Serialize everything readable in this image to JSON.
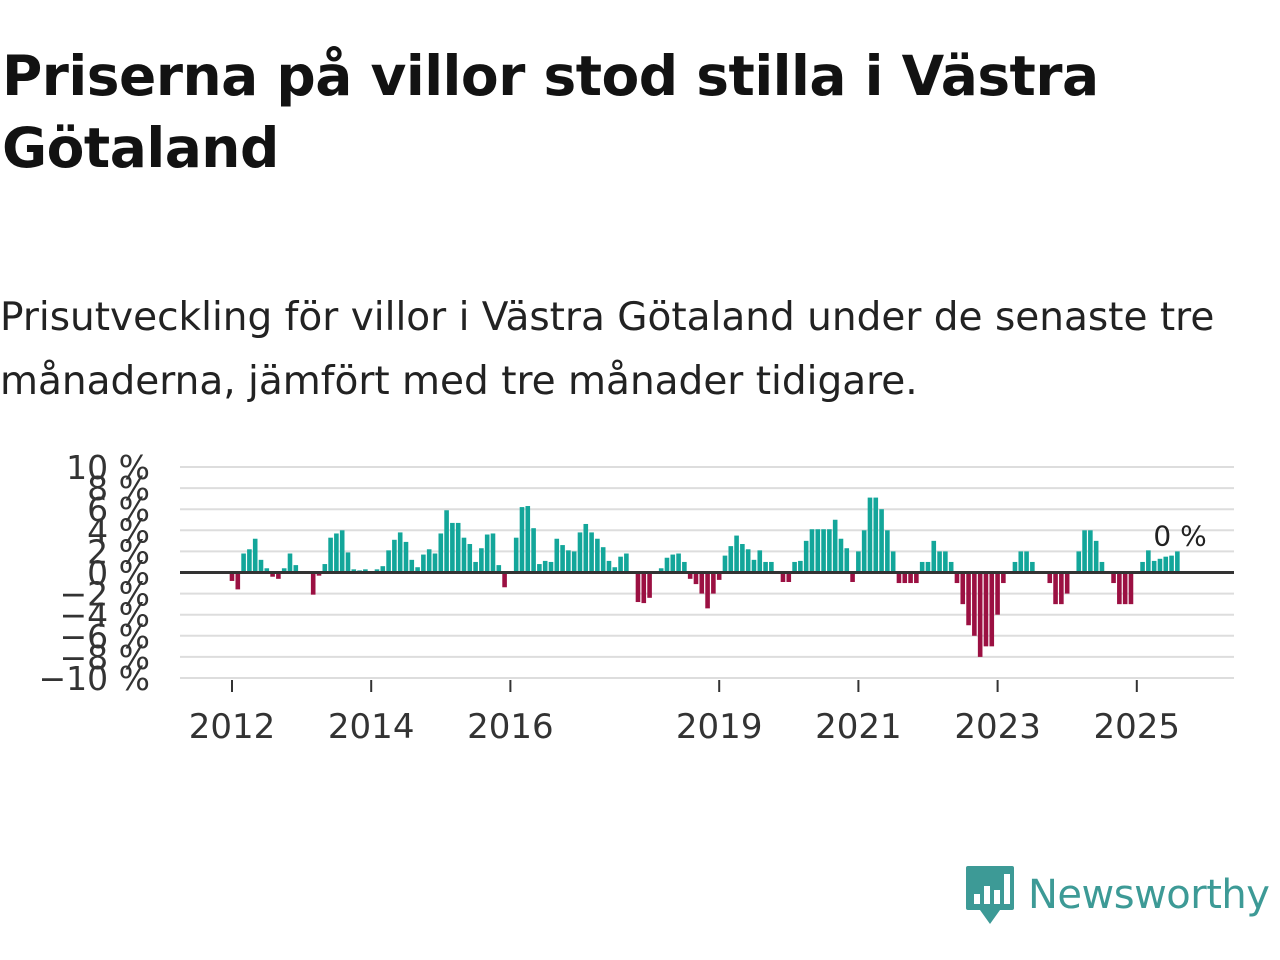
{
  "title": "Priserna på villor stod stilla i Västra Götaland",
  "subtitle": "Prisutveckling för villor i Västra Götaland under de senaste tre månaderna, jämfört med tre månader tidigare.",
  "logo": {
    "text": "Newsworthy",
    "icon": "newsworthy-logo-icon"
  },
  "colors": {
    "positive": "#13a69a",
    "negative": "#9b1042",
    "zero_line": "#333333",
    "grid": "#dddddd",
    "logo": "#3d9a96"
  },
  "chart_data": {
    "type": "bar",
    "title": "",
    "xlabel": "",
    "ylabel": "",
    "ylim": [
      -10,
      10
    ],
    "y_ticks": [
      -10,
      -8,
      -6,
      -4,
      -2,
      0,
      2,
      4,
      6,
      8,
      10
    ],
    "y_tick_labels": [
      "−10 %",
      "−8 %",
      "−6 %",
      "−4 %",
      "−2 %",
      "0 %",
      "2 %",
      "4 %",
      "6 %",
      "8 %",
      "10 %"
    ],
    "x_start": 2011.0,
    "x_end": 2026.25,
    "x_step": 0.08333,
    "x_ticks": [
      2012,
      2014,
      2016,
      2019,
      2021,
      2023,
      2025
    ],
    "x_tick_labels": [
      "2012",
      "2014",
      "2016",
      "2019",
      "2021",
      "2023",
      "2025"
    ],
    "last_value_label": "0 %",
    "grid": true,
    "values": [
      0,
      0,
      0,
      0,
      0,
      0,
      0,
      0,
      0,
      0,
      0,
      0,
      -0.8,
      -1.6,
      1.8,
      2.2,
      3.2,
      1.2,
      0.4,
      -0.4,
      -0.6,
      0.4,
      1.8,
      0.7,
      0,
      0,
      -2.1,
      -0.3,
      0.8,
      3.3,
      3.7,
      4.0,
      1.9,
      0.3,
      0.2,
      0.3,
      0.1,
      0.3,
      0.6,
      2.1,
      3.1,
      3.8,
      2.9,
      1.2,
      0.5,
      1.7,
      2.2,
      1.8,
      3.7,
      5.9,
      4.7,
      4.7,
      3.3,
      2.7,
      1.0,
      2.3,
      3.6,
      3.7,
      0.7,
      -1.4,
      0,
      3.3,
      6.2,
      6.3,
      4.2,
      0.8,
      1.1,
      1.0,
      3.2,
      2.6,
      2.1,
      2.0,
      3.8,
      4.6,
      3.8,
      3.2,
      2.4,
      1.1,
      0.5,
      1.5,
      1.8,
      0,
      -2.8,
      -2.9,
      -2.4,
      0,
      0.4,
      1.4,
      1.7,
      1.8,
      1.0,
      -0.6,
      -1.1,
      -2.0,
      -3.4,
      -2.0,
      -0.7,
      1.6,
      2.5,
      3.5,
      2.7,
      2.2,
      1.2,
      2.1,
      1.0,
      1.0,
      0,
      -0.9,
      -0.9,
      1.0,
      1.1,
      3.0,
      4.1,
      4.1,
      4.1,
      4.1,
      5.0,
      3.2,
      2.3,
      -0.9,
      2.0,
      4.0,
      7.1,
      7.1,
      6.0,
      4.0,
      2.0,
      -1.0,
      -1.0,
      -1.0,
      -1.0,
      1.0,
      1.0,
      3.0,
      2.0,
      2.0,
      1.0,
      -1.0,
      -3.0,
      -5.0,
      -6.0,
      -8.0,
      -7.0,
      -7.0,
      -4.0,
      -1.0,
      0,
      1.0,
      2.0,
      2.0,
      1.0,
      0,
      0,
      -1.0,
      -3.0,
      -3.0,
      -2.0,
      0,
      2.0,
      4.0,
      4.0,
      3.0,
      1.0,
      0,
      -1.0,
      -3.0,
      -3.0,
      -3.0,
      0,
      1.0,
      2.1,
      1.1,
      1.3,
      1.5,
      1.6,
      2.0
    ]
  }
}
